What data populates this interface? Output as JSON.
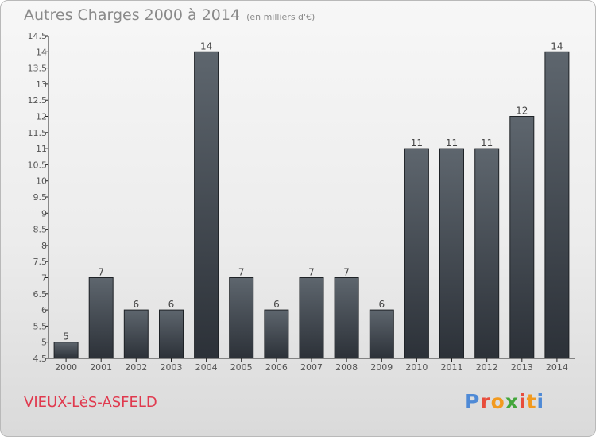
{
  "title": "Autres Charges 2000 à 2014",
  "unit_note": "(en milliers d'€)",
  "commune": "VIEUX-LèS-ASFELD",
  "logo": {
    "letters": [
      "P",
      "r",
      "o",
      "x",
      "i",
      "t",
      "i"
    ],
    "colors": [
      "#4f8ad6",
      "#e84d3c",
      "#f29a1f",
      "#43a63b",
      "#e84d3c",
      "#f29a1f",
      "#4f8ad6"
    ]
  },
  "chart_data": {
    "type": "bar",
    "categories": [
      "2000",
      "2001",
      "2002",
      "2003",
      "2004",
      "2005",
      "2006",
      "2007",
      "2008",
      "2009",
      "2010",
      "2011",
      "2012",
      "2013",
      "2014"
    ],
    "values": [
      5,
      7,
      6,
      6,
      14,
      7,
      6,
      7,
      7,
      6,
      11,
      11,
      11,
      12,
      14
    ],
    "data_labels": [
      "5",
      "7",
      "6",
      "6",
      "14",
      "7",
      "6",
      "7",
      "7",
      "6",
      "11",
      "11",
      "11",
      "12",
      "14"
    ],
    "title": "Autres Charges 2000 à 2014",
    "xlabel": "",
    "ylabel": "",
    "ylim": [
      4.5,
      14.5
    ],
    "yticks": [
      "4.5",
      "5",
      "5.5",
      "6",
      "6.5",
      "7",
      "7.5",
      "8",
      "8.5",
      "9",
      "9.5",
      "10",
      "10.5",
      "11",
      "11.5",
      "12",
      "12.5",
      "13",
      "13.5",
      "14",
      "14.5"
    ],
    "grid": false,
    "legend": "none",
    "bar_color": "#4a5058"
  }
}
